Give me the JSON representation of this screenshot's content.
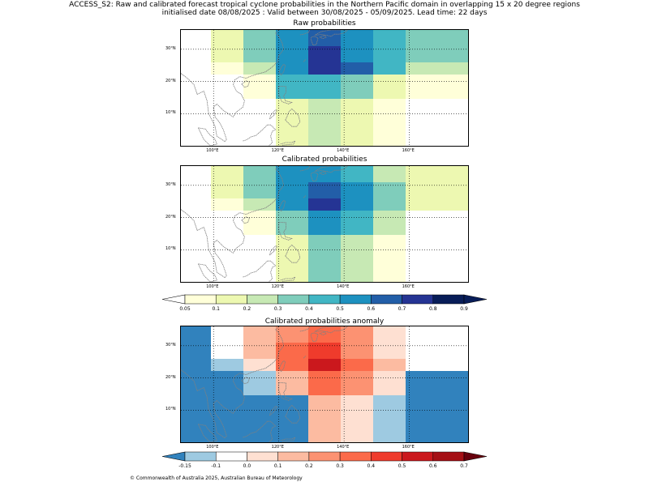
{
  "header": {
    "line1": "ACCESS_S2: Raw and calibrated forecast tropical cyclone probabilities in the Northern Pacific domain in overlapping 15 x 20 degree regions",
    "line2": "initialised date 08/08/2025 :  Valid between 30/08/2025 - 05/09/2025. Lead time: 22 days"
  },
  "panels": {
    "raw": {
      "title": "Raw probabilities"
    },
    "calibrated": {
      "title": "Calibrated probabilities"
    },
    "anomaly": {
      "title": "Calibrated probabilities anomaly"
    }
  },
  "axes": {
    "lon_labels": [
      "100°E",
      "120°E",
      "140°E",
      "160°E"
    ],
    "lat_labels": [
      "30°N",
      "20°N",
      "10°N"
    ]
  },
  "colorbars": {
    "probability": [
      "0.05",
      "0.1",
      "0.2",
      "0.3",
      "0.4",
      "0.5",
      "0.6",
      "0.7",
      "0.8",
      "0.9"
    ],
    "probability_colors": [
      "#ffffff",
      "#ffffd9",
      "#edf8b1",
      "#c7e9b4",
      "#7fcdbb",
      "#41b6c4",
      "#1d91c0",
      "#225ea8",
      "#253494",
      "#081d58",
      "#081d58"
    ],
    "anomaly": [
      "-0.15",
      "-0.1",
      "0.0",
      "0.1",
      "0.2",
      "0.3",
      "0.4",
      "0.5",
      "0.6",
      "0.7"
    ],
    "anomaly_colors": [
      "#3182bd",
      "#9ecae1",
      "#ffffff",
      "#fee0d2",
      "#fcbba1",
      "#fc9272",
      "#fb6a4a",
      "#ef3b2c",
      "#cb181d",
      "#a50f15",
      "#67000d"
    ]
  },
  "grids": {
    "raw": [
      [
        "w",
        "l1",
        "l3",
        "l5",
        "l6",
        "l5",
        "l4",
        "l3"
      ],
      [
        "w",
        "l1",
        "l3",
        "l5",
        "l7",
        "l5",
        "l4",
        "l3"
      ],
      [
        "w",
        "l0",
        "l2",
        "l5",
        "l7",
        "l6",
        "l4",
        "l2"
      ],
      [
        "w",
        "w",
        "l0",
        "l4",
        "l4",
        "l3",
        "l1",
        "l0"
      ],
      [
        "w",
        "w",
        "w",
        "l1",
        "l2",
        "l1",
        "l0",
        "w"
      ]
    ],
    "calibrated": [
      [
        "w",
        "l1",
        "l3",
        "l5",
        "l5",
        "l4",
        "l2",
        "l1"
      ],
      [
        "w",
        "l1",
        "l3",
        "l5",
        "l6",
        "l5",
        "l3",
        "l1"
      ],
      [
        "w",
        "l0",
        "l2",
        "l5",
        "l7",
        "l5",
        "l3",
        "l1"
      ],
      [
        "w",
        "w",
        "l0",
        "l3",
        "l5",
        "l4",
        "l2",
        "w"
      ],
      [
        "w",
        "w",
        "w",
        "l1",
        "l3",
        "l2",
        "l0",
        "w"
      ]
    ],
    "anomaly": [
      [
        "n2",
        "w",
        "a2",
        "a3",
        "a4",
        "a3",
        "a1",
        "w"
      ],
      [
        "n2",
        "w",
        "a2",
        "a4",
        "a5",
        "a3",
        "a1",
        "w"
      ],
      [
        "n2",
        "n1",
        "a1",
        "a4",
        "a6",
        "a4",
        "a2",
        "w"
      ],
      [
        "n2",
        "n2",
        "n1",
        "a2",
        "a4",
        "a3",
        "a1",
        "n2"
      ],
      [
        "n2",
        "n2",
        "n2",
        "n2",
        "a2",
        "a1",
        "n1",
        "n2"
      ]
    ]
  },
  "palette": {
    "w": "#ffffff",
    "l0": "#ffffd9",
    "l1": "#edf8b1",
    "l2": "#c7e9b4",
    "l3": "#7fcdbb",
    "l4": "#41b6c4",
    "l5": "#1d91c0",
    "l6": "#225ea8",
    "l7": "#253494",
    "n1": "#9ecae1",
    "n2": "#3182bd",
    "a1": "#fee0d2",
    "a2": "#fcbba1",
    "a3": "#fc9272",
    "a4": "#fb6a4a",
    "a5": "#ef3b2c",
    "a6": "#cb181d"
  },
  "footer": {
    "text": "© Commonwealth of Australia 2025, Australian Bureau of Meteorology"
  }
}
